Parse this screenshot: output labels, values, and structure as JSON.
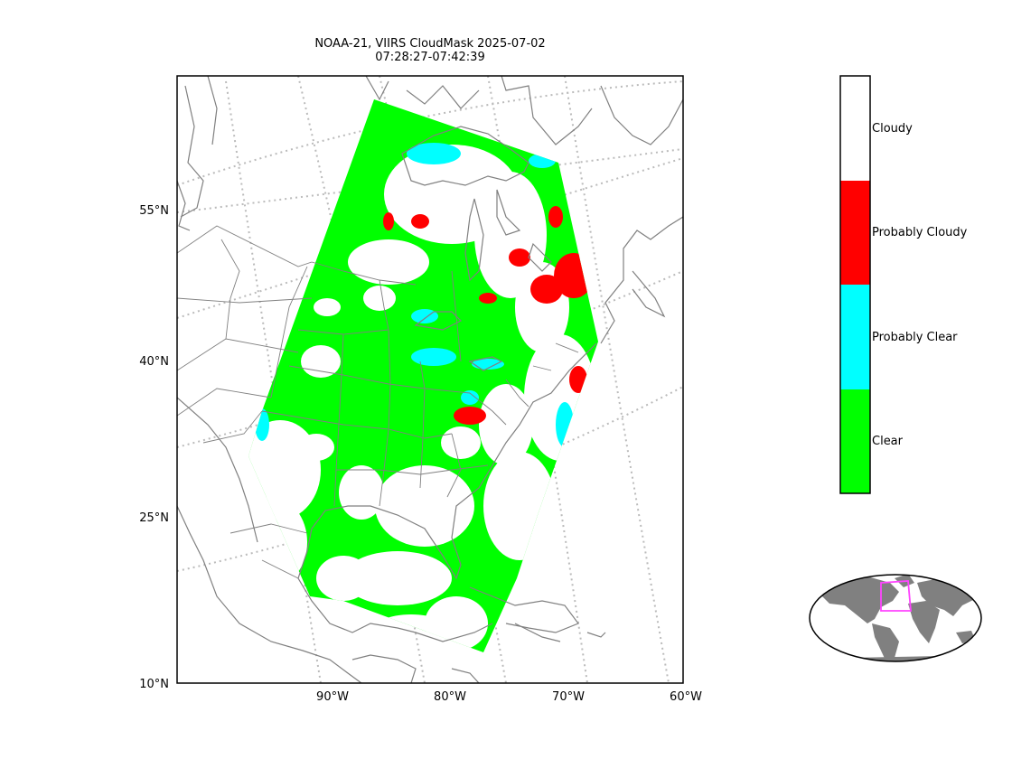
{
  "title": {
    "line1": "NOAA-21, VIIRS CloudMask 2025-07-02",
    "line2": "07:28:27-07:42:39"
  },
  "axes": {
    "lat_labels": [
      "55°N",
      "40°N",
      "25°N",
      "10°N"
    ],
    "lon_labels": [
      "90°W",
      "80°W",
      "70°W",
      "60°W"
    ],
    "gridlines": "dotted"
  },
  "colorbar": {
    "categories": [
      {
        "label": "Cloudy",
        "color": "#ffffff"
      },
      {
        "label": "Probably Cloudy",
        "color": "#ff0000"
      },
      {
        "label": "Probably Clear",
        "color": "#00ffff"
      },
      {
        "label": "Clear",
        "color": "#00ff00"
      }
    ]
  },
  "inset": {
    "land_color": "#808080",
    "highlight_color": "#ff44ff"
  },
  "colors": {
    "coastline": "#808080",
    "gridline": "#bbbbbb",
    "clear": "#00ff00",
    "probably_clear": "#00ffff",
    "probably_cloudy": "#ff0000"
  }
}
